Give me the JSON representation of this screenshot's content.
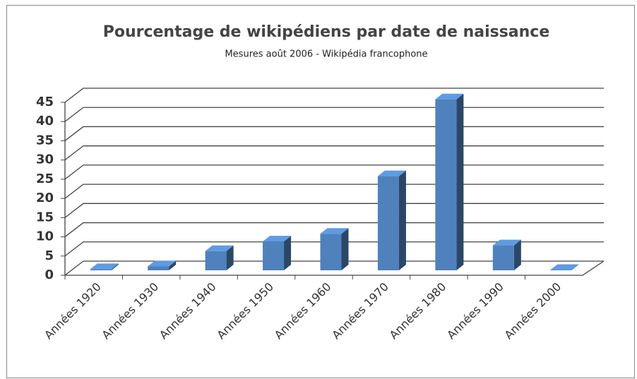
{
  "chart_data": {
    "type": "bar3d",
    "title": "Pourcentage de wikipédiens par date de naissance",
    "subtitle": "Mesures août 2006 - Wikipédia francophone",
    "categories": [
      "Années 1920",
      "Années 1930",
      "Années 1940",
      "Années 1950",
      "Années 1960",
      "Années 1970",
      "Années 1980",
      "Années 1990",
      "Années 2000"
    ],
    "values": [
      0.3,
      1,
      5,
      7.5,
      9.5,
      24.5,
      44.5,
      6.5,
      0.1
    ],
    "color": "#4f81bd",
    "ylim": [
      0,
      45
    ],
    "yticks": [
      0,
      5,
      10,
      15,
      20,
      25,
      30,
      35,
      40,
      45
    ],
    "grid": true
  }
}
